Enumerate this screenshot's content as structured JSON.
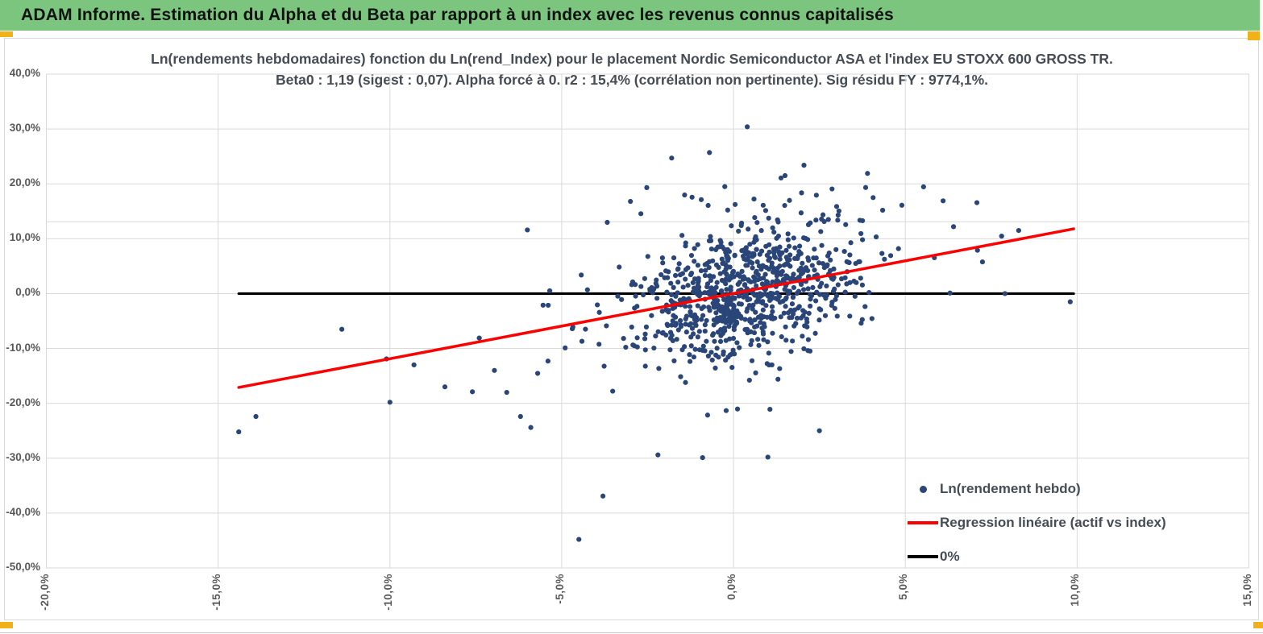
{
  "header": {
    "title": "ADAM Informe. Estimation du Alpha et du Beta par rapport à un index avec les revenus connus capitalisés",
    "bg_color": "#7cc57f"
  },
  "chart": {
    "title_line1": "Ln(rendements hebdomadaires) fonction du Ln(rend_Index) pour le placement Nordic Semiconductor ASA et l'index EU STOXX 600 GROSS TR.",
    "title_line2": "Beta0 : 1,19 (sigest : 0,07). Alpha forcé à  0. r2 : 15,4% (corrélation non pertinente). Sig résidu FY : 9774,1%.",
    "legend": [
      {
        "label": "Ln(rendement hebdo)",
        "marker": "dot",
        "color": "#2a4578"
      },
      {
        "label": "Regression linéaire (actif vs index)",
        "marker": "line",
        "color": "#ff0000"
      },
      {
        "label": "0%",
        "marker": "line",
        "color": "#000000"
      }
    ],
    "colors": {
      "grid": "#d9d9d9",
      "plot_border": "#d9d9d9",
      "axis_label": "#595959",
      "title": "#454c54",
      "point": "#2a4578",
      "regression": "#ff0000",
      "zero_line": "#000000",
      "handle": "#f0b119"
    }
  },
  "chart_data": {
    "type": "scatter",
    "title": "Ln(rendements hebdomadaires) fonction du Ln(rend_Index) pour le placement Nordic Semiconductor ASA et l'index EU STOXX 600 GROSS TR. Beta0 : 1,19 (sigest : 0,07). Alpha forcé à 0. r2 : 15,4% (corrélation non pertinente). Sig résidu FY : 9774,1%.",
    "xlabel": "",
    "ylabel": "",
    "grid": true,
    "legend_position": "inside-bottom-right",
    "x_axis": {
      "range": [
        -20,
        15
      ],
      "tick_values": [
        -20,
        -15,
        -10,
        -5,
        0,
        5,
        10,
        15
      ],
      "tick_labels": [
        "-20,0%",
        "-15,0%",
        "-10,0%",
        "-5,0%",
        "0,0%",
        "5,0%",
        "10,0%",
        "15,0%"
      ]
    },
    "y_axis": {
      "range": [
        -50,
        40
      ],
      "tick_values": [
        40,
        30,
        20,
        10,
        0,
        -10,
        -20,
        -30,
        -40,
        -50
      ],
      "tick_labels": [
        "40,0%",
        "30,0%",
        "20,0%",
        "10,0%",
        "0,0%",
        "-10,0%",
        "-20,0%",
        "-30,0%",
        "-40,0%",
        "-50,0%"
      ]
    },
    "extra_gridline_y": 13.1,
    "stats": {
      "beta0": 1.19,
      "sigest": 0.07,
      "alpha_forced": 0,
      "r2_pct": 15.4,
      "sig_residu_fy_pct": 9774.1
    },
    "series": [
      {
        "name": "0%",
        "type": "line",
        "color": "#000000",
        "width": 3.2,
        "z": 0,
        "points": [
          [
            -14.4,
            0
          ],
          [
            9.9,
            0
          ]
        ]
      },
      {
        "name": "Ln(rendement hebdo)",
        "type": "scatter",
        "color": "#2a4578",
        "radius": 3.1,
        "z": 1,
        "outlier_points": [
          [
            -14.4,
            -25.2
          ],
          [
            -13.9,
            -22.4
          ],
          [
            -11.4,
            -6.5
          ],
          [
            -10.1,
            -11.9
          ],
          [
            -10.0,
            -19.8
          ],
          [
            -9.3,
            -13.0
          ],
          [
            -8.4,
            -17.0
          ],
          [
            -7.6,
            -17.9
          ],
          [
            -7.4,
            -8.1
          ],
          [
            -6.6,
            -18.0
          ],
          [
            -6.2,
            -22.4
          ],
          [
            -6.0,
            11.6
          ],
          [
            -5.9,
            -24.4
          ],
          [
            -5.4,
            -12.3
          ],
          [
            -4.9,
            -9.9
          ],
          [
            -4.5,
            -44.8
          ],
          [
            -3.8,
            -36.9
          ],
          [
            -3.0,
            16.8
          ],
          [
            -2.2,
            -29.4
          ],
          [
            -1.8,
            24.7
          ],
          [
            -0.9,
            -29.9
          ],
          [
            -0.7,
            25.7
          ],
          [
            0.4,
            30.4
          ],
          [
            1.0,
            -29.8
          ],
          [
            1.5,
            21.5
          ],
          [
            2.5,
            -25.0
          ],
          [
            3.9,
            21.9
          ],
          [
            4.9,
            16.1
          ],
          [
            6.1,
            16.9
          ],
          [
            6.3,
            0.1
          ],
          [
            7.1,
            7.9
          ],
          [
            7.9,
            0.0
          ],
          [
            8.3,
            11.5
          ],
          [
            9.8,
            -1.5
          ]
        ],
        "cloud_spec": {
          "seed": 42,
          "count": 880,
          "x_mean": 0.35,
          "x_sd": 1.55,
          "x_tail_sd": 3.2,
          "x_tail_frac": 0.12,
          "x_range": [
            -7.5,
            10
          ],
          "beta": 1.19,
          "resid_sd": 5.6,
          "resid_tail_sd": 10.5,
          "resid_tail_frac": 0.14,
          "y_range": [
            -30,
            26
          ]
        }
      },
      {
        "name": "Regression linéaire (actif vs index)",
        "type": "line",
        "color": "#ff0000",
        "width": 3.5,
        "z": 2,
        "points": [
          [
            -14.4,
            -17.1
          ],
          [
            9.9,
            11.8
          ]
        ]
      }
    ]
  }
}
